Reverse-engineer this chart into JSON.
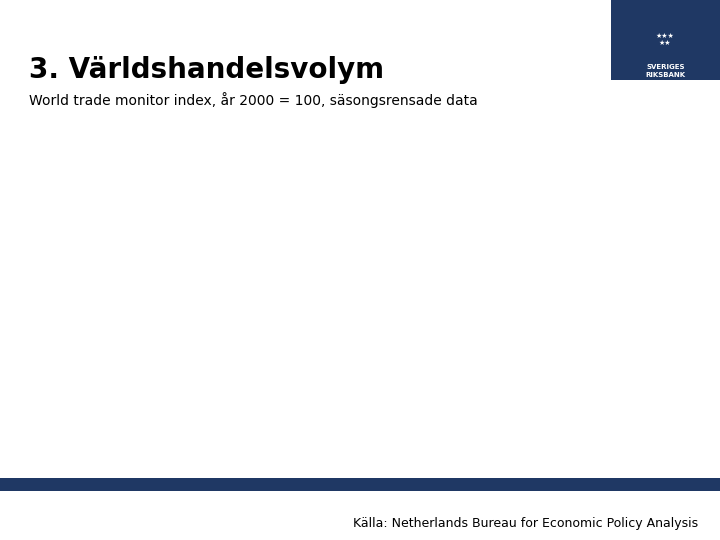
{
  "title": "3. Världshandelsvolym",
  "subtitle": "World trade monitor index, år 2000 = 100, säsongsrensade data",
  "source_text": "Källa: Netherlands Bureau for Economic Policy Analysis",
  "background_color": "#ffffff",
  "title_color": "#000000",
  "subtitle_color": "#000000",
  "source_color": "#000000",
  "bar_color": "#1f3864",
  "logo_bg_color": "#1f3864",
  "title_fontsize": 20,
  "subtitle_fontsize": 10,
  "source_fontsize": 9
}
